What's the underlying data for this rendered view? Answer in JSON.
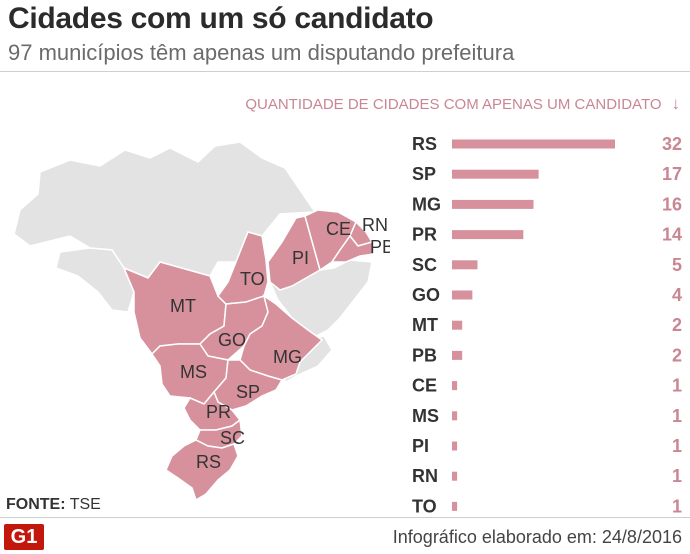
{
  "header": {
    "title": "Cidades com um só candidato",
    "subtitle": "97 municípios têm apenas um disputando prefeitura"
  },
  "chart_title": "QUANTIDADE DE CIDADES COM APENAS UM CANDIDATO",
  "colors": {
    "highlight": "#d6919c",
    "bar": "#d6919c",
    "value_text": "#c98693",
    "map_base": "#e3e3e3",
    "border": "#ffffff",
    "logo": "#c4170c"
  },
  "map_labels": [
    "MT",
    "TO",
    "PI",
    "CE",
    "RN",
    "PB",
    "GO",
    "MG",
    "MS",
    "SP",
    "PR",
    "SC",
    "RS"
  ],
  "chart_data": {
    "type": "bar",
    "orientation": "horizontal",
    "categories": [
      "RS",
      "SP",
      "MG",
      "PR",
      "SC",
      "GO",
      "MT",
      "PB",
      "CE",
      "MS",
      "PI",
      "RN",
      "TO"
    ],
    "values": [
      32,
      17,
      16,
      14,
      5,
      4,
      2,
      2,
      1,
      1,
      1,
      1,
      1
    ],
    "title": "QUANTIDADE DE CIDADES COM APENAS UM CANDIDATO",
    "xlabel": "",
    "ylabel": "",
    "xlim": [
      0,
      32
    ],
    "grid": false
  },
  "footer": {
    "source_label": "FONTE:",
    "source_value": "TSE",
    "logo_text": "G1",
    "credit": "Infográfico elaborado em: 24/8/2016"
  }
}
